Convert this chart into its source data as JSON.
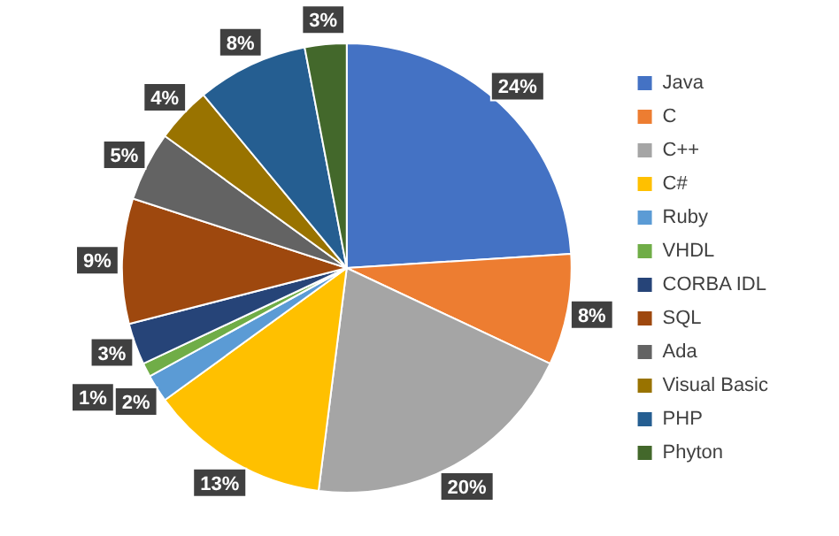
{
  "chart_data": {
    "type": "pie",
    "categories": [
      "Java",
      "C",
      "C++",
      "C#",
      "Ruby",
      "VHDL",
      "CORBA IDL",
      "SQL",
      "Ada",
      "Visual Basic",
      "PHP",
      "Phyton"
    ],
    "values": [
      24,
      8,
      20,
      13,
      2,
      1,
      3,
      9,
      5,
      4,
      8,
      3
    ],
    "colors": [
      "#4472c4",
      "#ed7d31",
      "#a5a5a5",
      "#ffc000",
      "#5b9bd5",
      "#70ad47",
      "#264478",
      "#9e480e",
      "#636363",
      "#997300",
      "#255e91",
      "#43682b"
    ],
    "value_labels": [
      "24%",
      "8%",
      "20%",
      "13%",
      "2%",
      "1%",
      "3%",
      "9%",
      "5%",
      "4%",
      "8%",
      "3%"
    ],
    "legend": "right"
  }
}
